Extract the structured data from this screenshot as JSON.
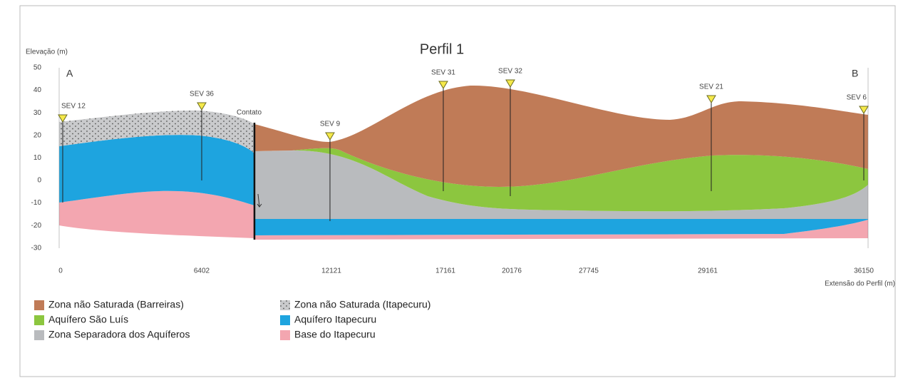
{
  "title": "Perfil 1",
  "y_axis": {
    "label": "Elevação (m)",
    "ticks": [
      "50",
      "40",
      "30",
      "20",
      "10",
      "0",
      "-10",
      "-20",
      "-30"
    ]
  },
  "x_axis": {
    "label": "Extensão do Perfil (m)",
    "ticks": [
      "0",
      "6402",
      "12121",
      "17161",
      "20176",
      "27745",
      "29161",
      "36150"
    ]
  },
  "labels": {
    "a": "A",
    "b": "B",
    "contato": "Contato"
  },
  "sevs": [
    "SEV 12",
    "SEV 36",
    "SEV 9",
    "SEV 31",
    "SEV 32",
    "SEV 21",
    "SEV 6"
  ],
  "legend": [
    "Zona não Saturada (Barreiras)",
    "Aquífero São Luís",
    "Zona Separadora dos Aquíferos",
    "Zona não Saturada (Itapecuru)",
    "Aquífero Itapecuru",
    "Base do Itapecuru"
  ]
}
